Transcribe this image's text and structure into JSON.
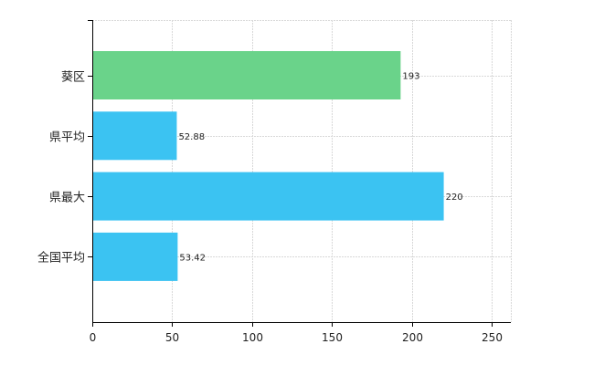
{
  "chart_data": {
    "type": "bar",
    "orientation": "horizontal",
    "title": "",
    "xlabel": "",
    "ylabel": "",
    "categories": [
      "葵区",
      "県平均",
      "県最大",
      "全国平均"
    ],
    "values": [
      193,
      52.88,
      220,
      53.42
    ],
    "data_labels": [
      "193",
      "52.88",
      "220",
      "53.42"
    ],
    "bar_colors": [
      "#6ad38a",
      "#3bc3f2",
      "#3bc3f2",
      "#3bc3f2"
    ],
    "xlim": [
      0,
      262
    ],
    "xticks": [
      0,
      50,
      100,
      150,
      200,
      250
    ],
    "xtick_labels": [
      "0",
      "50",
      "100",
      "150",
      "200",
      "250"
    ],
    "grid": true,
    "legend": false
  }
}
